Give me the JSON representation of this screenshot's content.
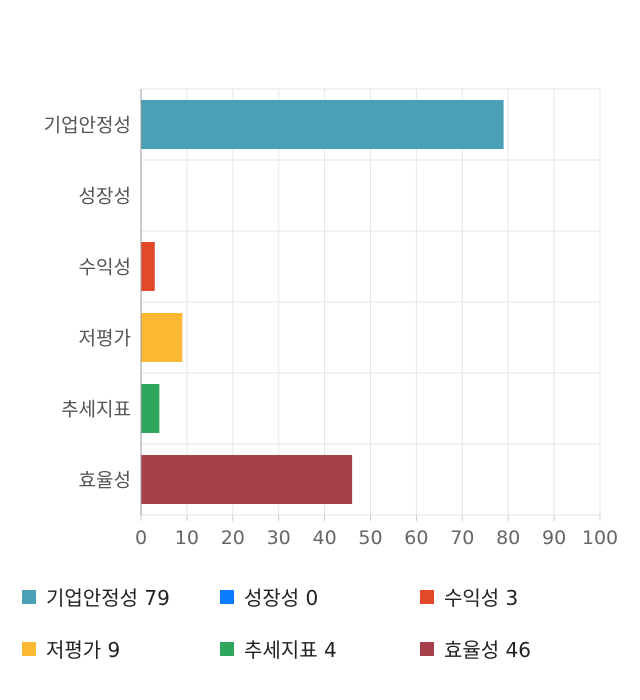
{
  "chart_data": {
    "type": "bar",
    "orientation": "horizontal",
    "categories": [
      "기업안정성",
      "성장성",
      "수익성",
      "저평가",
      "추세지표",
      "효율성"
    ],
    "values": [
      79,
      0,
      3,
      9,
      4,
      46
    ],
    "colors": [
      "#4aa0b5",
      "#0a7cff",
      "#e2482a",
      "#fbb832",
      "#2ea65b",
      "#a8404c"
    ],
    "xlim": [
      0,
      100
    ],
    "xticks": [
      "0",
      "10",
      "20",
      "30",
      "40",
      "50",
      "60",
      "70",
      "80",
      "90",
      "100"
    ],
    "grid": true,
    "legend_position": "bottom"
  },
  "legend": [
    {
      "label": "기업안정성 79",
      "color": "#4aa0b5"
    },
    {
      "label": "성장성 0",
      "color": "#0a7cff"
    },
    {
      "label": "수익성 3",
      "color": "#e2482a"
    },
    {
      "label": "저평가 9",
      "color": "#fbb832"
    },
    {
      "label": "추세지표 4",
      "color": "#2ea65b"
    },
    {
      "label": "효율성 46",
      "color": "#a8404c"
    }
  ]
}
